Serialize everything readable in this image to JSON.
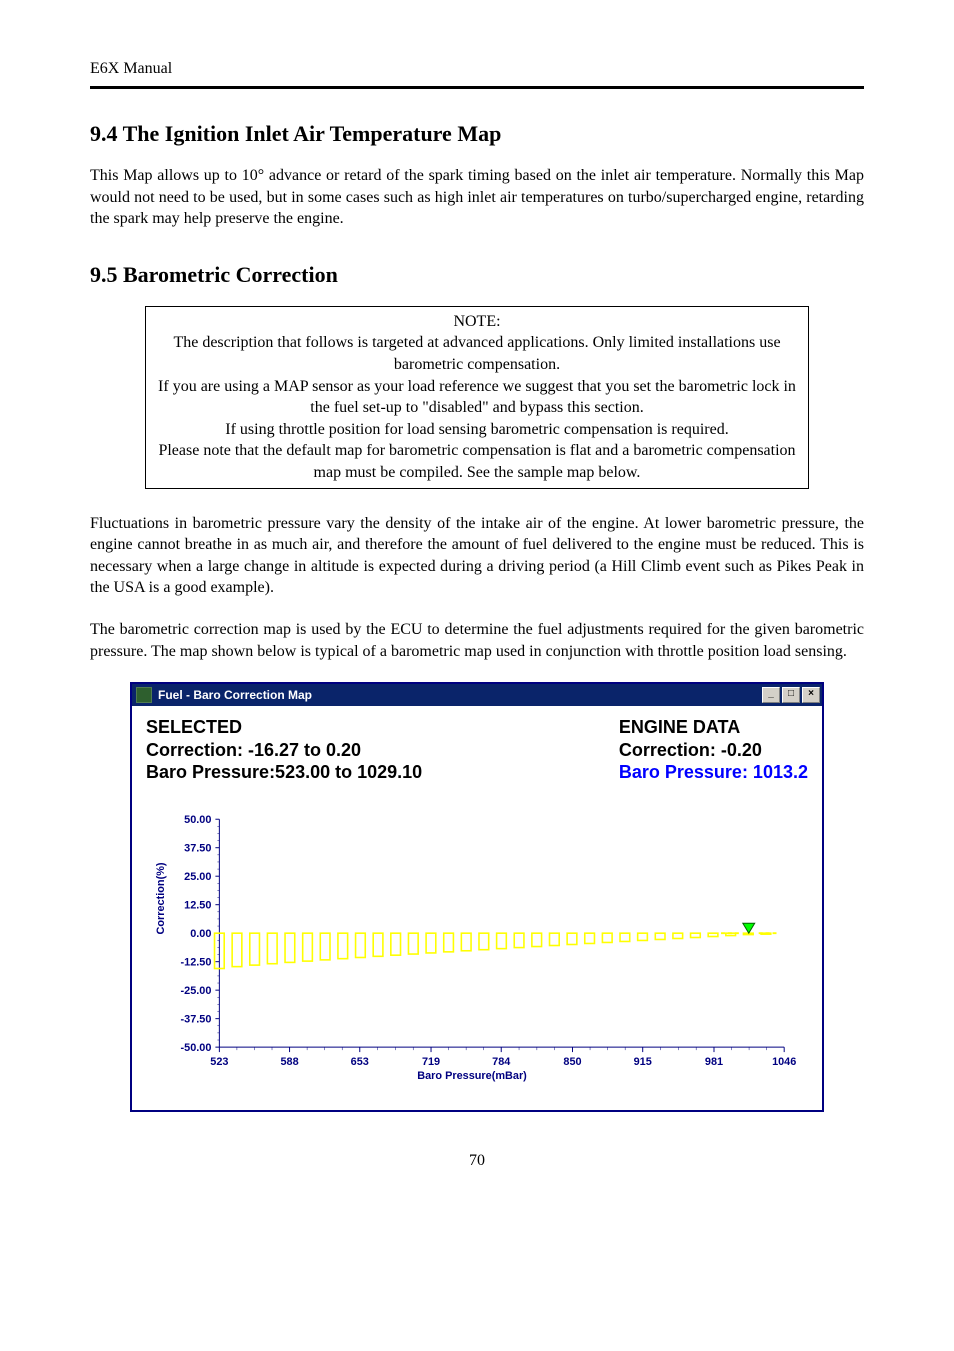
{
  "header": "E6X Manual",
  "section94": {
    "heading": "9.4 The Ignition Inlet Air Temperature Map",
    "para": "This Map allows up to 10° advance or retard of the spark timing based on the inlet air temperature. Normally this Map would not need to be used, but in some cases such as high inlet air temperatures on turbo/supercharged engine, retarding the spark may help preserve the engine."
  },
  "section95": {
    "heading": "9.5 Barometric Correction",
    "note": {
      "line1": "NOTE:",
      "line2": "The description that follows is targeted at advanced applications.  Only limited installations use barometric compensation.",
      "line3": "If you are using a MAP sensor as your load reference we suggest that you set the barometric lock in the fuel set-up to \"disabled\" and bypass this section.",
      "line4": "If using throttle position for load sensing barometric compensation is required.",
      "line5": "Please note that the default map for barometric compensation is flat and a barometric compensation map must be compiled.  See the sample map below."
    },
    "para1": "Fluctuations in barometric pressure vary the density of the intake air of the engine. At lower barometric pressure, the engine cannot breathe in as much air, and therefore the amount of fuel delivered to the engine must be reduced. This is necessary when a large change in altitude is expected during a driving period (a Hill Climb event such as Pikes Peak in the USA is a good example).",
    "para2": "The barometric correction map is used by the ECU to determine the fuel adjustments required for the given barometric pressure.  The map shown below is typical of a barometric map used in conjunction with throttle position load sensing."
  },
  "chart": {
    "window_title": "Fuel - Baro Correction Map",
    "selected_heading": "SELECTED",
    "selected_line1": "Correction: -16.27 to 0.20",
    "selected_line2": "Baro Pressure:523.00 to 1029.10",
    "engine_heading": "ENGINE DATA",
    "engine_line1": "Correction: -0.20",
    "engine_line2": "Baro Pressure: 1013.2",
    "type": "bar",
    "y_ticks": [
      "50.00",
      "37.50",
      "25.00",
      "12.50",
      "0.00",
      "-12.50",
      "-25.00",
      "-37.50",
      "-50.00"
    ],
    "y_label": "Correction(%)",
    "x_ticks": [
      "523",
      "588",
      "653",
      "719",
      "784",
      "850",
      "915",
      "981",
      "1046"
    ],
    "x_label": "Baro Pressure(mBar)",
    "x_start": 523,
    "x_end": 1046,
    "y_min": -50,
    "y_max": 50,
    "n_bars": 32,
    "bar_start_x": 523,
    "bar_end_x": 1029.1,
    "bar_val_start": -15.5,
    "bar_val_end": -0.2,
    "marker_x": 1013.2,
    "marker_y": 0,
    "colors": {
      "titlebar_bg": "#0a246a",
      "titlebar_fg": "#ffffff",
      "axis_text": "#000080",
      "bar_stroke": "#ffff00",
      "marker_fill": "#00ff00",
      "highlight_text": "#0000ff"
    }
  },
  "page_number": "70"
}
